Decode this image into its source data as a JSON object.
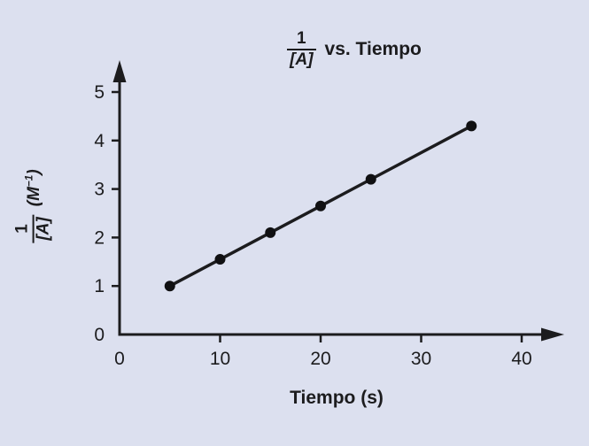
{
  "background": "#dce0ef",
  "ink": "#1c1c1e",
  "title": {
    "frac_numerator": "1",
    "frac_denominator": "[A]",
    "text": "vs. Tiempo"
  },
  "y_axis_label": {
    "frac_numerator": "1",
    "frac_denominator": "[A]",
    "unit_prefix": "(M",
    "unit_superscript": "−1",
    "unit_suffix": ")"
  },
  "x_axis_label": "Tiempo (s)",
  "chart_data": {
    "type": "line",
    "title": "1/[A] vs. Tiempo",
    "xlabel": "Tiempo (s)",
    "ylabel": "1/[A] (M⁻¹)",
    "x": [
      5,
      10,
      15,
      20,
      25,
      35
    ],
    "y": [
      1.0,
      1.55,
      2.1,
      2.65,
      3.2,
      4.3
    ],
    "x_ticks": [
      0,
      10,
      20,
      30,
      40
    ],
    "y_ticks": [
      0,
      1,
      2,
      3,
      4,
      5
    ],
    "xlim": [
      0,
      44
    ],
    "ylim": [
      0,
      5.7
    ],
    "grid": false,
    "legend": false,
    "marker": "circle",
    "line_color": "#1c1c1e",
    "marker_color": "#101012",
    "axis_color": "#1c1c1e",
    "tick_label_size": 21
  }
}
